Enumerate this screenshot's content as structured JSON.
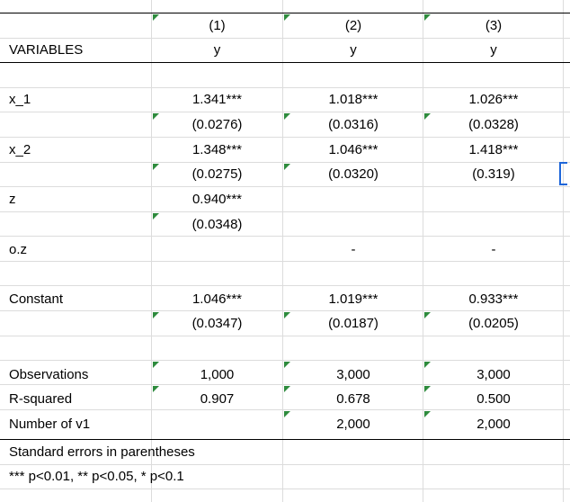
{
  "header": {
    "col_numbers": [
      "(1)",
      "(2)",
      "(3)"
    ],
    "variables_label": "VARIABLES",
    "dep_vars": [
      "y",
      "y",
      "y"
    ]
  },
  "rows": [
    {
      "label": "x_1",
      "values": [
        "1.341***",
        "1.018***",
        "1.026***"
      ]
    },
    {
      "label": "",
      "values": [
        "(0.0276)",
        "(0.0316)",
        "(0.0328)"
      ]
    },
    {
      "label": "x_2",
      "values": [
        "1.348***",
        "1.046***",
        "1.418***"
      ]
    },
    {
      "label": "",
      "values": [
        "(0.0275)",
        "(0.0320)",
        "(0.319)"
      ]
    },
    {
      "label": "z",
      "values": [
        "0.940***",
        "",
        ""
      ]
    },
    {
      "label": "",
      "values": [
        "(0.0348)",
        "",
        ""
      ]
    },
    {
      "label": "o.z",
      "values": [
        "",
        "-",
        "-"
      ]
    },
    {
      "label": "Constant",
      "values": [
        "1.046***",
        "1.019***",
        "0.933***"
      ]
    },
    {
      "label": "",
      "values": [
        "(0.0347)",
        "(0.0187)",
        "(0.0205)"
      ]
    },
    {
      "label": "Observations",
      "values": [
        "1,000",
        "3,000",
        "3,000"
      ]
    },
    {
      "label": "R-squared",
      "values": [
        "0.907",
        "0.678",
        "0.500"
      ]
    },
    {
      "label": "Number of v1",
      "values": [
        "",
        "2,000",
        "2,000"
      ]
    }
  ],
  "footer": {
    "note1": "Standard errors in parentheses",
    "note2": "*** p<0.01, ** p<0.05, * p<0.1"
  }
}
